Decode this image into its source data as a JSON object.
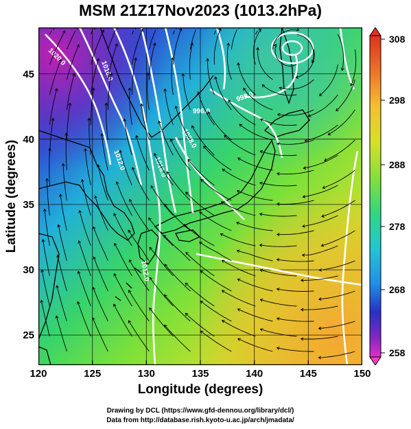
{
  "title": "MSM 21Z17Nov2023 (1013.2hPa)",
  "axes": {
    "xlabel": "Longitude (degrees)",
    "ylabel": "Latitude  (degrees)",
    "xticks": [
      "120",
      "125",
      "130",
      "135",
      "140",
      "145",
      "150"
    ],
    "yticks": [
      "25",
      "30",
      "35",
      "40",
      "45"
    ]
  },
  "map": {
    "lon_range": [
      120,
      150
    ],
    "lat_range": [
      22.4,
      47.6
    ],
    "grid_lon": [
      120,
      125,
      130,
      135,
      140,
      145,
      150
    ],
    "grid_lat": [
      25,
      30,
      35,
      40,
      45
    ]
  },
  "isobar_labels": [
    "1020.0",
    "1016.0",
    "1012.0",
    "1012.0",
    "1008.0",
    "1016.0",
    "996.0",
    "992.0"
  ],
  "colorbar": {
    "labels": [
      "308",
      "298",
      "288",
      "278",
      "268",
      "258"
    ],
    "min": 258,
    "max": 308
  },
  "credits": {
    "line1": "Drawing by DCL (https://www.gfd-dennou.org/library/dcl/)",
    "line2": "Data from http://database.rish.kyoto-u.ac.jp/arch/jmadata/"
  }
}
